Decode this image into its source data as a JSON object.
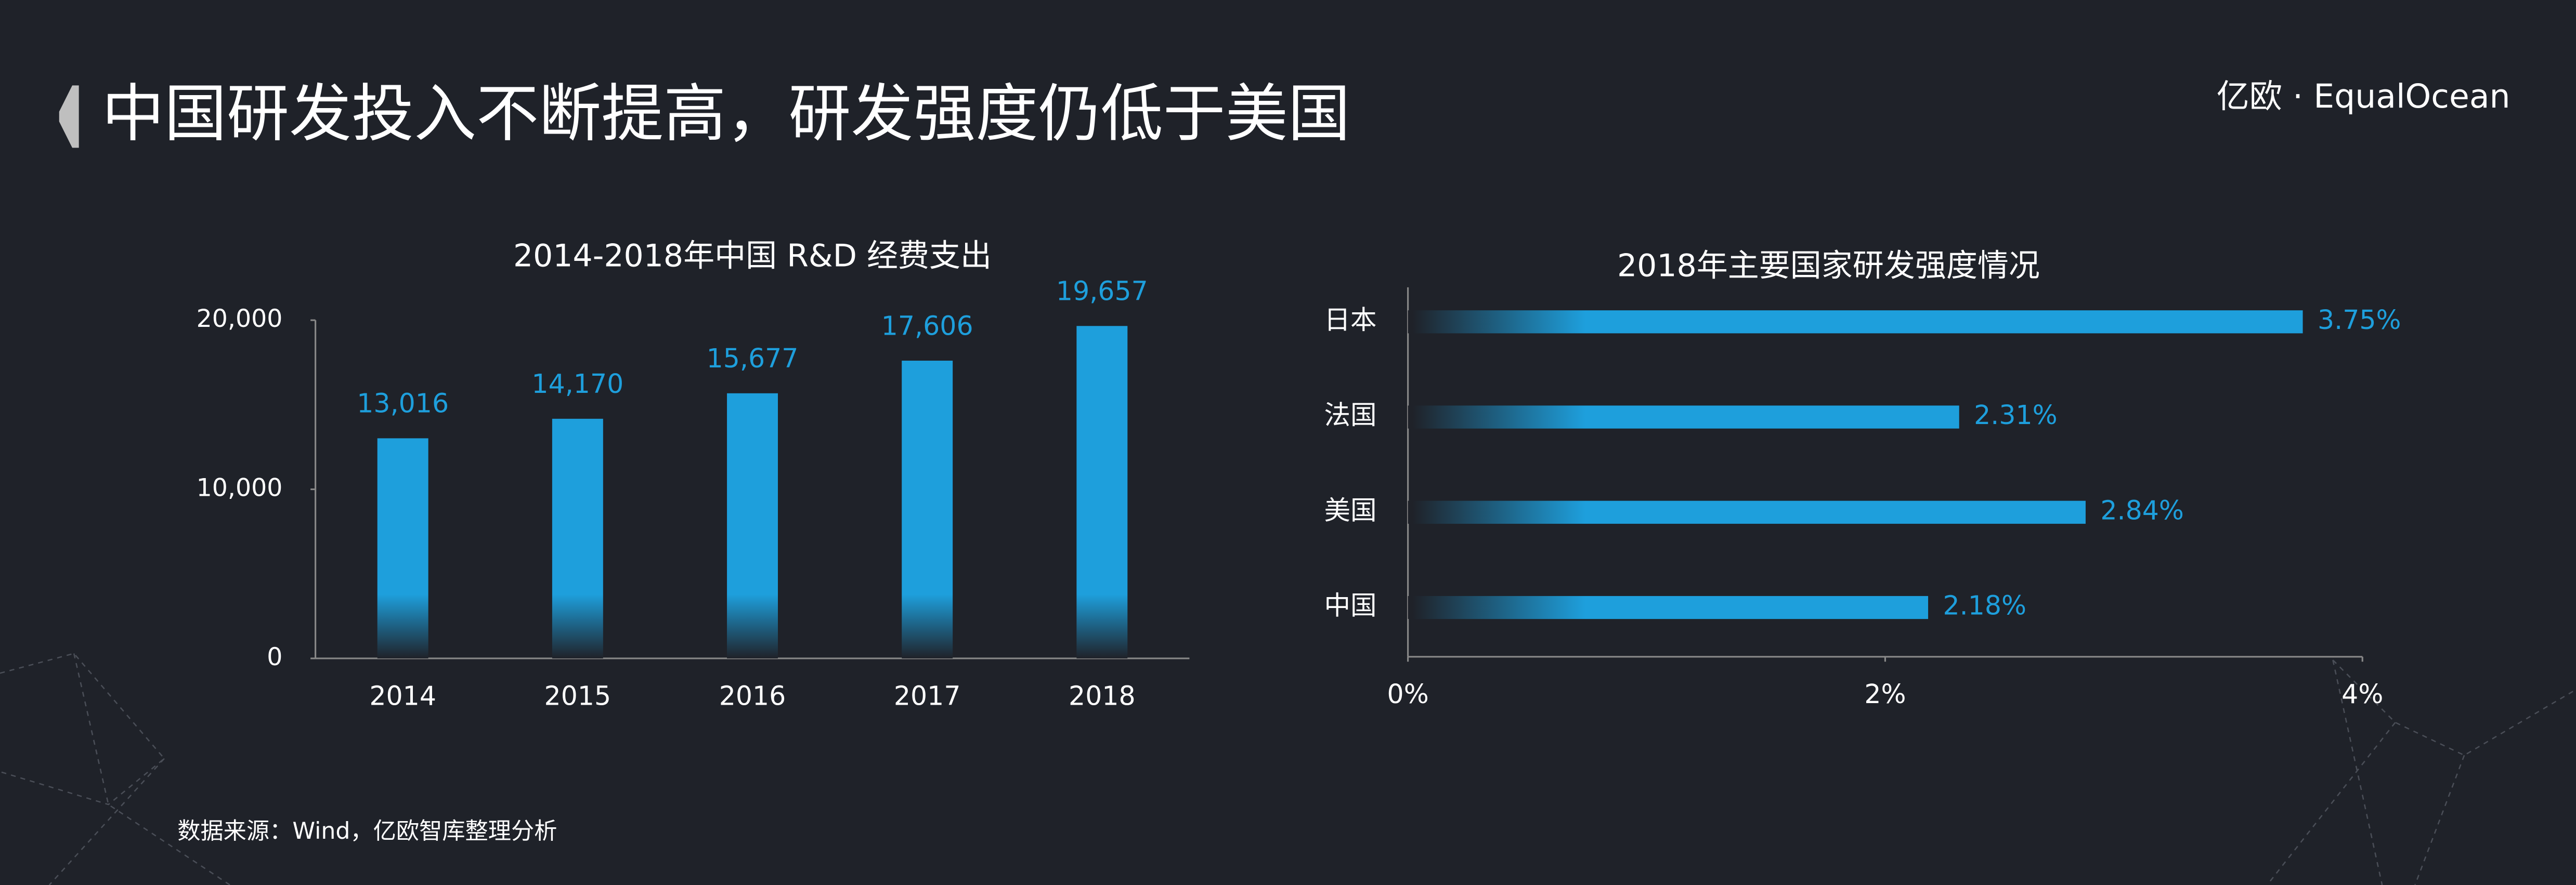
{
  "title": "中国研发投入不断提高，研发强度仍低于美国",
  "logo": "亿欧 · EqualOcean",
  "source": "数据来源：Wind，亿欧智库整理分析",
  "chart_data": [
    {
      "type": "bar",
      "title": "2014-2018年中国 R&D 经费支出",
      "categories": [
        "2014",
        "2015",
        "2016",
        "2017",
        "2018"
      ],
      "values": [
        13016,
        14170,
        15677,
        17606,
        19657
      ],
      "value_labels": [
        "13,016",
        "14,170",
        "15,677",
        "17,606",
        "19,657"
      ],
      "color": "#1e9fdc",
      "ylim": [
        0,
        20000
      ],
      "yticks": [
        0,
        {
          "value": 10000,
          "label": "10,000"
        },
        {
          "value": 20000,
          "label": "20,000"
        }
      ]
    },
    {
      "type": "barh",
      "title": "2018年主要国家研发强度情况",
      "categories": [
        "日本",
        "法国",
        "美国",
        "中国"
      ],
      "values": [
        3.75,
        2.31,
        2.84,
        2.18
      ],
      "value_labels": [
        "3.75%",
        "2.31%",
        "2.84%",
        "2.18%"
      ],
      "color": "#1e9fdc",
      "xlim": [
        0,
        4
      ],
      "xticks": [
        {
          "value": 0,
          "label": "0%"
        },
        {
          "value": 2,
          "label": "2%"
        },
        {
          "value": 4,
          "label": "4%"
        }
      ]
    }
  ]
}
